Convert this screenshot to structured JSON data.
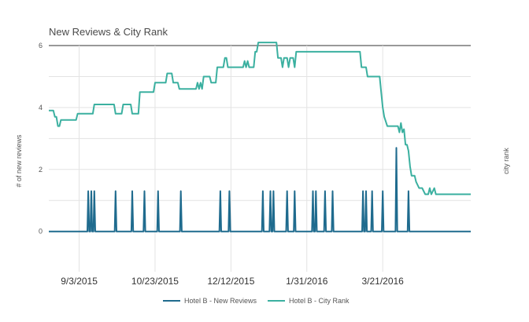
{
  "chart_data": {
    "type": "line",
    "title": "New Reviews & City Rank",
    "ylabel_left": "# of new reviews",
    "ylabel_right": "city rank",
    "ylim_left": [
      -1.3,
      6
    ],
    "yticks_left": [
      "6",
      "4",
      "2",
      "0"
    ],
    "xticks": [
      "9/3/2015",
      "10/23/2015",
      "12/12/2015",
      "1/31/2016",
      "3/21/2016"
    ],
    "xtick_positions": [
      20,
      70,
      120,
      170,
      220
    ],
    "xlim": [
      0,
      278
    ],
    "grid": true,
    "legend_position": "bottom",
    "colors": {
      "reviews": "#1f6b8e",
      "rank": "#3bb0a0"
    },
    "series": [
      {
        "name": "Hotel B - New Reviews",
        "spikes": [
          {
            "day": 26,
            "value": 1.3
          },
          {
            "day": 28,
            "value": 1.3
          },
          {
            "day": 30,
            "value": 1.3
          },
          {
            "day": 44,
            "value": 1.3
          },
          {
            "day": 55,
            "value": 1.3
          },
          {
            "day": 63,
            "value": 1.3
          },
          {
            "day": 72,
            "value": 1.3
          },
          {
            "day": 87,
            "value": 1.3
          },
          {
            "day": 113,
            "value": 1.3
          },
          {
            "day": 119,
            "value": 1.3
          },
          {
            "day": 141,
            "value": 1.3
          },
          {
            "day": 146,
            "value": 1.3
          },
          {
            "day": 148,
            "value": 1.3
          },
          {
            "day": 157,
            "value": 1.3
          },
          {
            "day": 162,
            "value": 1.3
          },
          {
            "day": 174,
            "value": 1.3
          },
          {
            "day": 176,
            "value": 1.3
          },
          {
            "day": 182,
            "value": 1.3
          },
          {
            "day": 187,
            "value": 1.3
          },
          {
            "day": 207,
            "value": 1.3
          },
          {
            "day": 209,
            "value": 1.3
          },
          {
            "day": 213,
            "value": 1.3
          },
          {
            "day": 220,
            "value": 1.3
          },
          {
            "day": 229,
            "value": 2.7
          },
          {
            "day": 237,
            "value": 1.3
          }
        ]
      },
      {
        "name": "Hotel B - City Rank",
        "points": [
          [
            0,
            3.9
          ],
          [
            3,
            3.9
          ],
          [
            4,
            3.7
          ],
          [
            5,
            3.7
          ],
          [
            6,
            3.4
          ],
          [
            7,
            3.4
          ],
          [
            8,
            3.6
          ],
          [
            18,
            3.6
          ],
          [
            19,
            3.8
          ],
          [
            29,
            3.8
          ],
          [
            30,
            4.1
          ],
          [
            43,
            4.1
          ],
          [
            44,
            3.8
          ],
          [
            48,
            3.8
          ],
          [
            49,
            4.1
          ],
          [
            54,
            4.1
          ],
          [
            55,
            3.8
          ],
          [
            59,
            3.8
          ],
          [
            60,
            4.5
          ],
          [
            69,
            4.5
          ],
          [
            70,
            4.8
          ],
          [
            77,
            4.8
          ],
          [
            78,
            5.1
          ],
          [
            81,
            5.1
          ],
          [
            82,
            4.8
          ],
          [
            85,
            4.8
          ],
          [
            86,
            4.6
          ],
          [
            97,
            4.6
          ],
          [
            98,
            4.8
          ],
          [
            99,
            4.6
          ],
          [
            100,
            4.8
          ],
          [
            101,
            4.6
          ],
          [
            102,
            5.0
          ],
          [
            106,
            5.0
          ],
          [
            107,
            4.8
          ],
          [
            110,
            4.8
          ],
          [
            111,
            5.3
          ],
          [
            115,
            5.3
          ],
          [
            116,
            5.6
          ],
          [
            117,
            5.6
          ],
          [
            118,
            5.3
          ],
          [
            128,
            5.3
          ],
          [
            129,
            5.5
          ],
          [
            130,
            5.3
          ],
          [
            131,
            5.5
          ],
          [
            132,
            5.3
          ],
          [
            135,
            5.3
          ],
          [
            136,
            5.8
          ],
          [
            137,
            5.8
          ],
          [
            138,
            6.1
          ],
          [
            150,
            6.1
          ],
          [
            151,
            5.6
          ],
          [
            153,
            5.6
          ],
          [
            154,
            5.3
          ],
          [
            155,
            5.6
          ],
          [
            157,
            5.6
          ],
          [
            158,
            5.3
          ],
          [
            159,
            5.6
          ],
          [
            161,
            5.6
          ],
          [
            162,
            5.3
          ],
          [
            163,
            5.8
          ],
          [
            205,
            5.8
          ],
          [
            206,
            5.3
          ],
          [
            209,
            5.3
          ],
          [
            210,
            5.0
          ],
          [
            218,
            5.0
          ],
          [
            219,
            4.5
          ],
          [
            220,
            4.0
          ],
          [
            221,
            3.7
          ],
          [
            223,
            3.4
          ],
          [
            230,
            3.4
          ],
          [
            231,
            3.2
          ],
          [
            232,
            3.5
          ],
          [
            233,
            3.2
          ],
          [
            234,
            3.3
          ],
          [
            235,
            2.8
          ],
          [
            236,
            2.8
          ],
          [
            237,
            2.6
          ],
          [
            238,
            2.1
          ],
          [
            239,
            1.8
          ],
          [
            241,
            1.8
          ],
          [
            242,
            1.6
          ],
          [
            244,
            1.4
          ],
          [
            246,
            1.4
          ],
          [
            248,
            1.2
          ],
          [
            250,
            1.2
          ],
          [
            251,
            1.4
          ],
          [
            252,
            1.2
          ],
          [
            254,
            1.4
          ],
          [
            255,
            1.2
          ],
          [
            278,
            1.2
          ]
        ]
      }
    ]
  }
}
